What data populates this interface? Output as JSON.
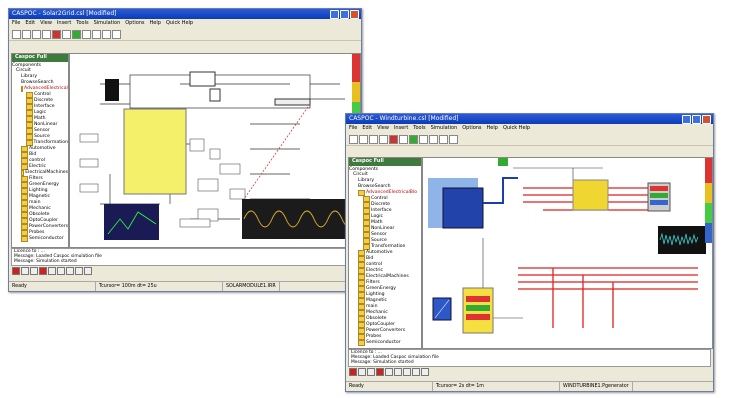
{
  "windows": [
    {
      "title": "CASPOC - Solar2Grid.csl [Modified]",
      "menu": [
        "File",
        "Edit",
        "View",
        "Insert",
        "Tools",
        "Simulation",
        "Options",
        "Help",
        "Quick Help"
      ],
      "tab": "Caspoc Full",
      "library": {
        "top": [
          "Components",
          "Circuit",
          "Library"
        ],
        "search": "BrowseSearch",
        "advanced": {
          "label": "AdvancedElectricalBlo",
          "children": [
            "Control",
            "Discrete",
            "Interface",
            "Logic",
            "Math",
            "NonLinear",
            "Sensor",
            "Source",
            "Transformation"
          ]
        },
        "folders": [
          "Automotive",
          "Bid",
          "control",
          "Electric",
          "ElectricalMachines",
          "Filters",
          "GreenEnergy",
          "Lighting",
          "Magnetic",
          "main",
          "Mechanic",
          "Obsolete",
          "OptoCoupler",
          "PowerConverters",
          "Probes",
          "Semiconductor"
        ]
      },
      "messages": [
        "Licence to : ...",
        "Message: Loaded Caspoc simulation file",
        "Message: Simulation started"
      ],
      "status": [
        "Ready",
        "Tcursor= 100m dt= 25u",
        "SOLARMODULE1.IRR"
      ]
    },
    {
      "title": "CASPOC - Windturbine.csl [Modified]",
      "menu": [
        "File",
        "Edit",
        "View",
        "Insert",
        "Tools",
        "Simulation",
        "Options",
        "Help",
        "Quick Help"
      ],
      "tab": "Caspoc Full",
      "library": {
        "top": [
          "Components",
          "Circuit",
          "Library"
        ],
        "search": "BrowseSearch",
        "advanced": {
          "label": "AdvancedElectricalBlo",
          "children": [
            "Control",
            "Discrete",
            "Interface",
            "Logic",
            "Math",
            "NonLinear",
            "Sensor",
            "Source",
            "Transformation"
          ]
        },
        "folders": [
          "Automotive",
          "Bid",
          "control",
          "Electric",
          "ElectricalMachines",
          "Filters",
          "GreenEnergy",
          "Lighting",
          "Magnetic",
          "main",
          "Mechanic",
          "Obsolete",
          "OptoCoupler",
          "PowerConverters",
          "Probes",
          "Semiconductor"
        ]
      },
      "messages": [
        "Licence to : ...",
        "Message: Loaded Caspoc simulation file",
        "Message: Simulation started"
      ],
      "status": [
        "Ready",
        "Tcursor= 2s dt= 1m",
        "WINDTURBINE1.Pgenerator"
      ]
    }
  ]
}
